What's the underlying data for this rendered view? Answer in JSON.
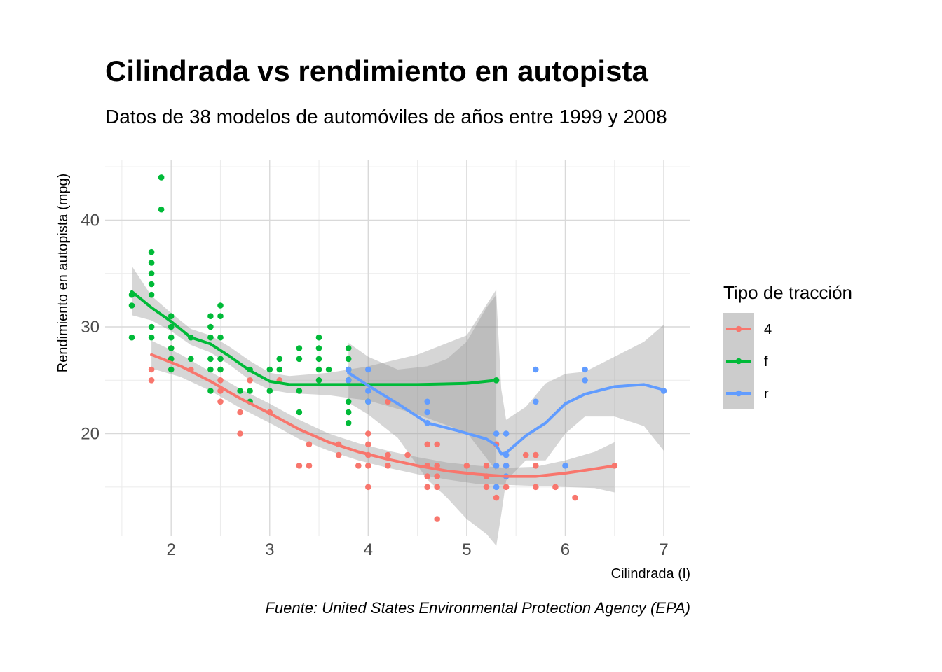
{
  "chart_data": {
    "type": "scatter",
    "title": "Cilindrada vs rendimiento en autopista",
    "subtitle": "Datos de 38 modelos de automóviles de años entre 1999 y 2008",
    "xlabel": "Cilindrada (l)",
    "ylabel": "Rendimiento en autopista (mpg)",
    "caption": "Fuente: United States Environmental Protection Agency (EPA)",
    "xlim": [
      1.33,
      7.27
    ],
    "ylim": [
      10.4,
      45.6
    ],
    "x_ticks": [
      "2",
      "3",
      "4",
      "5",
      "6",
      "7"
    ],
    "y_ticks": [
      "20",
      "30",
      "40"
    ],
    "grid": true,
    "legend": {
      "title": "Tipo de tracción",
      "position": "right"
    },
    "series": [
      {
        "name": "4",
        "color": "#F8766D",
        "points": [
          [
            1.8,
            26
          ],
          [
            1.8,
            25
          ],
          [
            2.0,
            28
          ],
          [
            2.0,
            27
          ],
          [
            2.2,
            26
          ],
          [
            2.5,
            26
          ],
          [
            2.5,
            25
          ],
          [
            2.5,
            24
          ],
          [
            2.5,
            23
          ],
          [
            2.7,
            22
          ],
          [
            2.7,
            20
          ],
          [
            2.8,
            25
          ],
          [
            3.0,
            22
          ],
          [
            3.1,
            25
          ],
          [
            3.3,
            17
          ],
          [
            3.4,
            17
          ],
          [
            3.4,
            19
          ],
          [
            3.7,
            19
          ],
          [
            3.7,
            18
          ],
          [
            3.9,
            17
          ],
          [
            4.0,
            20
          ],
          [
            4.0,
            19
          ],
          [
            4.0,
            18
          ],
          [
            4.0,
            17
          ],
          [
            4.0,
            15
          ],
          [
            4.2,
            18
          ],
          [
            4.2,
            17
          ],
          [
            4.2,
            23
          ],
          [
            4.4,
            18
          ],
          [
            4.6,
            19
          ],
          [
            4.6,
            17
          ],
          [
            4.6,
            16
          ],
          [
            4.6,
            15
          ],
          [
            4.7,
            19
          ],
          [
            4.7,
            17
          ],
          [
            4.7,
            16
          ],
          [
            4.7,
            15
          ],
          [
            4.7,
            12
          ],
          [
            5.0,
            17
          ],
          [
            5.2,
            17
          ],
          [
            5.2,
            16
          ],
          [
            5.2,
            15
          ],
          [
            5.3,
            19
          ],
          [
            5.3,
            14
          ],
          [
            5.4,
            17
          ],
          [
            5.4,
            15
          ],
          [
            5.6,
            18
          ],
          [
            5.7,
            18
          ],
          [
            5.7,
            17
          ],
          [
            5.7,
            15
          ],
          [
            5.9,
            15
          ],
          [
            6.1,
            14
          ],
          [
            6.5,
            17
          ]
        ],
        "smooth": [
          [
            1.8,
            27.4
          ],
          [
            2.1,
            26.3
          ],
          [
            2.4,
            24.9
          ],
          [
            2.7,
            23.3
          ],
          [
            3.0,
            21.9
          ],
          [
            3.3,
            20.4
          ],
          [
            3.6,
            19.2
          ],
          [
            3.9,
            18.3
          ],
          [
            4.2,
            17.6
          ],
          [
            4.5,
            17.0
          ],
          [
            4.8,
            16.5
          ],
          [
            5.1,
            16.2
          ],
          [
            5.4,
            16.0
          ],
          [
            5.7,
            16.0
          ],
          [
            6.0,
            16.3
          ],
          [
            6.3,
            16.7
          ],
          [
            6.5,
            17.0
          ]
        ],
        "band": [
          [
            1.8,
            28.7,
            26.1
          ],
          [
            2.1,
            27.4,
            25.3
          ],
          [
            2.4,
            25.8,
            24.0
          ],
          [
            2.7,
            24.2,
            22.4
          ],
          [
            3.0,
            22.8,
            21.0
          ],
          [
            3.3,
            21.3,
            19.5
          ],
          [
            3.6,
            20.0,
            18.4
          ],
          [
            3.9,
            19.1,
            17.5
          ],
          [
            4.2,
            18.4,
            16.8
          ],
          [
            4.5,
            17.8,
            16.2
          ],
          [
            4.8,
            17.3,
            15.7
          ],
          [
            5.1,
            17.0,
            15.3
          ],
          [
            5.4,
            16.8,
            15.2
          ],
          [
            5.7,
            16.9,
            15.1
          ],
          [
            6.0,
            17.5,
            15.0
          ],
          [
            6.3,
            18.3,
            14.9
          ],
          [
            6.5,
            19.2,
            14.5
          ]
        ]
      },
      {
        "name": "f",
        "color": "#00BA38",
        "points": [
          [
            1.6,
            33
          ],
          [
            1.6,
            32
          ],
          [
            1.6,
            29
          ],
          [
            1.8,
            37
          ],
          [
            1.8,
            36
          ],
          [
            1.8,
            35
          ],
          [
            1.8,
            34
          ],
          [
            1.8,
            33
          ],
          [
            1.8,
            30
          ],
          [
            1.8,
            29
          ],
          [
            1.9,
            44
          ],
          [
            1.9,
            41
          ],
          [
            2.0,
            31
          ],
          [
            2.0,
            30
          ],
          [
            2.0,
            29
          ],
          [
            2.0,
            28
          ],
          [
            2.0,
            27
          ],
          [
            2.0,
            26
          ],
          [
            2.2,
            29
          ],
          [
            2.2,
            27
          ],
          [
            2.4,
            31
          ],
          [
            2.4,
            30
          ],
          [
            2.4,
            29
          ],
          [
            2.4,
            27
          ],
          [
            2.4,
            26
          ],
          [
            2.4,
            24
          ],
          [
            2.5,
            32
          ],
          [
            2.5,
            31
          ],
          [
            2.5,
            29
          ],
          [
            2.5,
            27
          ],
          [
            2.5,
            26
          ],
          [
            2.7,
            24
          ],
          [
            2.8,
            26
          ],
          [
            2.8,
            24
          ],
          [
            2.8,
            23
          ],
          [
            3.0,
            26
          ],
          [
            3.0,
            24
          ],
          [
            3.1,
            27
          ],
          [
            3.1,
            26
          ],
          [
            3.3,
            28
          ],
          [
            3.3,
            27
          ],
          [
            3.3,
            24
          ],
          [
            3.3,
            22
          ],
          [
            3.5,
            29
          ],
          [
            3.5,
            28
          ],
          [
            3.5,
            27
          ],
          [
            3.5,
            26
          ],
          [
            3.5,
            25
          ],
          [
            3.6,
            26
          ],
          [
            3.8,
            28
          ],
          [
            3.8,
            27
          ],
          [
            3.8,
            26
          ],
          [
            3.8,
            25
          ],
          [
            3.8,
            23
          ],
          [
            3.8,
            22
          ],
          [
            3.8,
            21
          ],
          [
            4.0,
            23
          ],
          [
            5.3,
            25
          ]
        ],
        "smooth": [
          [
            1.6,
            33.3
          ],
          [
            1.8,
            31.8
          ],
          [
            2.0,
            30.5
          ],
          [
            2.2,
            29.0
          ],
          [
            2.4,
            28.4
          ],
          [
            2.6,
            27.2
          ],
          [
            2.8,
            25.9
          ],
          [
            3.0,
            24.9
          ],
          [
            3.2,
            24.6
          ],
          [
            3.6,
            24.6
          ],
          [
            4.0,
            24.6
          ],
          [
            4.5,
            24.6
          ],
          [
            5.0,
            24.7
          ],
          [
            5.3,
            25.0
          ]
        ],
        "band": [
          [
            1.6,
            35.7,
            31.1
          ],
          [
            1.8,
            32.9,
            30.6
          ],
          [
            2.0,
            31.3,
            29.6
          ],
          [
            2.2,
            29.8,
            28.3
          ],
          [
            2.4,
            29.2,
            27.6
          ],
          [
            2.6,
            28.1,
            26.4
          ],
          [
            2.8,
            26.8,
            25.0
          ],
          [
            3.0,
            25.7,
            24.1
          ],
          [
            3.2,
            25.4,
            23.8
          ],
          [
            3.6,
            25.7,
            23.6
          ],
          [
            4.0,
            26.3,
            23.1
          ],
          [
            4.5,
            27.4,
            21.8
          ],
          [
            5.0,
            29.2,
            20.1
          ],
          [
            5.3,
            33.5,
            16.5
          ]
        ]
      },
      {
        "name": "r",
        "color": "#619CFF",
        "points": [
          [
            3.8,
            26
          ],
          [
            3.8,
            25
          ],
          [
            4.0,
            26
          ],
          [
            4.0,
            24
          ],
          [
            4.0,
            23
          ],
          [
            4.6,
            23
          ],
          [
            4.6,
            22
          ],
          [
            4.6,
            21
          ],
          [
            5.3,
            20
          ],
          [
            5.3,
            17
          ],
          [
            5.3,
            15
          ],
          [
            5.4,
            20
          ],
          [
            5.4,
            18
          ],
          [
            5.4,
            17
          ],
          [
            5.4,
            16
          ],
          [
            5.7,
            26
          ],
          [
            5.7,
            23
          ],
          [
            6.0,
            17
          ],
          [
            6.2,
            26
          ],
          [
            6.2,
            25
          ],
          [
            7.0,
            24
          ]
        ],
        "smooth": [
          [
            3.8,
            25.7
          ],
          [
            4.0,
            24.5
          ],
          [
            4.3,
            22.8
          ],
          [
            4.6,
            21.0
          ],
          [
            4.9,
            20.3
          ],
          [
            5.2,
            19.5
          ],
          [
            5.3,
            18.9
          ],
          [
            5.35,
            18.1
          ],
          [
            5.4,
            18.2
          ],
          [
            5.6,
            19.8
          ],
          [
            5.8,
            21.0
          ],
          [
            6.0,
            22.8
          ],
          [
            6.2,
            23.7
          ],
          [
            6.5,
            24.4
          ],
          [
            6.8,
            24.6
          ],
          [
            7.0,
            24.1
          ]
        ],
        "band": [
          [
            3.8,
            28.5,
            22.9
          ],
          [
            4.0,
            27.2,
            21.8
          ],
          [
            4.3,
            26.0,
            19.6
          ],
          [
            4.6,
            26.3,
            15.7
          ],
          [
            4.8,
            27.0,
            14.0
          ],
          [
            5.0,
            28.6,
            12.0
          ],
          [
            5.2,
            31.8,
            10.6
          ],
          [
            5.3,
            33.0,
            9.5
          ],
          [
            5.35,
            24.2,
            12.4
          ],
          [
            5.4,
            21.3,
            15.6
          ],
          [
            5.6,
            22.5,
            17.5
          ],
          [
            5.8,
            24.7,
            17.5
          ],
          [
            6.0,
            25.6,
            20.0
          ],
          [
            6.2,
            25.8,
            21.6
          ],
          [
            6.5,
            27.2,
            21.6
          ],
          [
            6.8,
            28.6,
            20.7
          ],
          [
            7.0,
            30.2,
            18.4
          ]
        ]
      }
    ]
  }
}
